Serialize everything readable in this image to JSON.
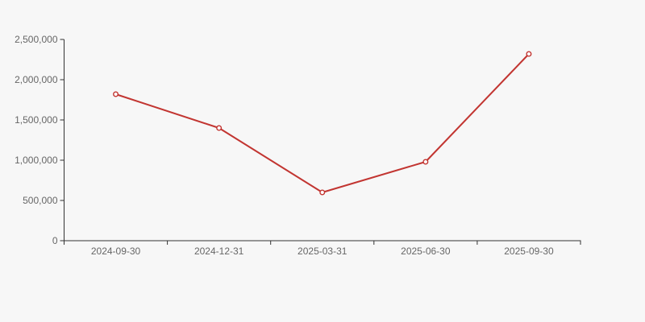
{
  "canvas": {
    "background": "#f7f7f7"
  },
  "chart_data": {
    "type": "line",
    "title": "",
    "xlabel": "",
    "ylabel": "",
    "categories": [
      "2024-09-30",
      "2024-12-31",
      "2025-03-31",
      "2025-06-30",
      "2025-09-30"
    ],
    "values": [
      1820000,
      1400000,
      600000,
      980000,
      2320000
    ],
    "ylim": [
      0,
      2500000
    ],
    "ytick_step": 500000,
    "ytick_labels": [
      "0",
      "500,000",
      "1,000,000",
      "1,500,000",
      "2,000,000",
      "2,500,000"
    ],
    "grid": "off",
    "legend": "none",
    "line_color": "#c23531",
    "marker_style": "hollow-circle",
    "marker_fill": "#ffffff",
    "axis_color": "#333333",
    "label_color": "#666666"
  }
}
